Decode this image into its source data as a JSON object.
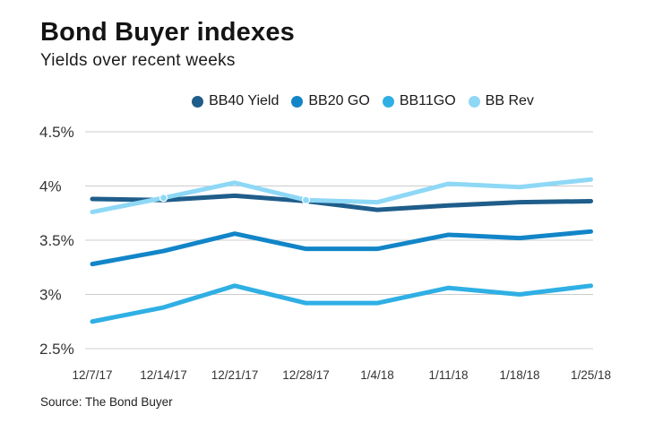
{
  "header": {
    "title": "Bond Buyer indexes",
    "subtitle": "Yields over recent weeks"
  },
  "source": "Source: The Bond Buyer",
  "chart_data": {
    "type": "line",
    "title": "Bond Buyer indexes",
    "subtitle": "Yields over recent weeks",
    "x": [
      "12/7/17",
      "12/14/17",
      "12/21/17",
      "12/28/17",
      "1/4/18",
      "1/11/18",
      "1/18/18",
      "1/25/18"
    ],
    "series": [
      {
        "name": "BB40 Yield",
        "color": "#1f5d8a",
        "values": [
          3.88,
          3.87,
          3.91,
          3.86,
          3.78,
          3.82,
          3.85,
          3.86
        ]
      },
      {
        "name": "BB20 GO",
        "color": "#1285c8",
        "values": [
          3.28,
          3.4,
          3.56,
          3.42,
          3.42,
          3.55,
          3.52,
          3.58
        ]
      },
      {
        "name": "BB11GO",
        "color": "#2fafe4",
        "values": [
          2.75,
          2.88,
          3.08,
          2.92,
          2.92,
          3.06,
          3.0,
          3.08
        ]
      },
      {
        "name": "BB Rev",
        "color": "#8ed8f6",
        "values": [
          3.76,
          3.89,
          4.03,
          3.87,
          3.85,
          4.02,
          3.99,
          4.06
        ]
      }
    ],
    "yticks": [
      {
        "value": 4.5,
        "label": "4.5%"
      },
      {
        "value": 4.0,
        "label": "4%"
      },
      {
        "value": 3.5,
        "label": "3.5%"
      },
      {
        "value": 3.0,
        "label": "3%"
      },
      {
        "value": 2.5,
        "label": "2.5%"
      }
    ],
    "ylim": [
      2.5,
      4.5
    ],
    "grid": true,
    "legend_position": "top",
    "highlight_dots": [
      {
        "series_index": 3,
        "point_index": 1
      },
      {
        "series_index": 3,
        "point_index": 3
      }
    ]
  }
}
